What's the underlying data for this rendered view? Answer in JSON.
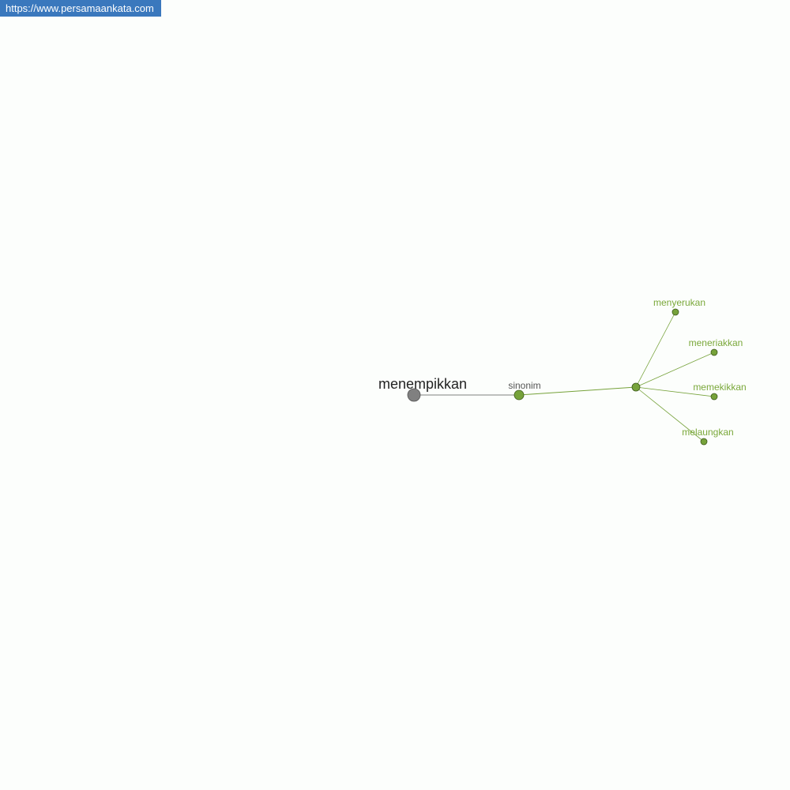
{
  "banner": {
    "url": "https://www.persamaankata.com"
  },
  "graph": {
    "root": {
      "label": "menempikkan",
      "color": "#808080"
    },
    "relation": {
      "label": "sinonim",
      "color": "#76a23a"
    },
    "hub": {
      "label": "",
      "color": "#76a23a"
    },
    "words": [
      {
        "label": "menyerukan"
      },
      {
        "label": "meneriakkan"
      },
      {
        "label": "memekikkan"
      },
      {
        "label": "melaungkan"
      }
    ],
    "colors": {
      "root_label": "#222222",
      "relation_label": "#555555",
      "word_label": "#7aa83a",
      "edge_root": "#808080",
      "edge_green": "#76a23a",
      "node_stroke": "#3d5a1c"
    }
  }
}
